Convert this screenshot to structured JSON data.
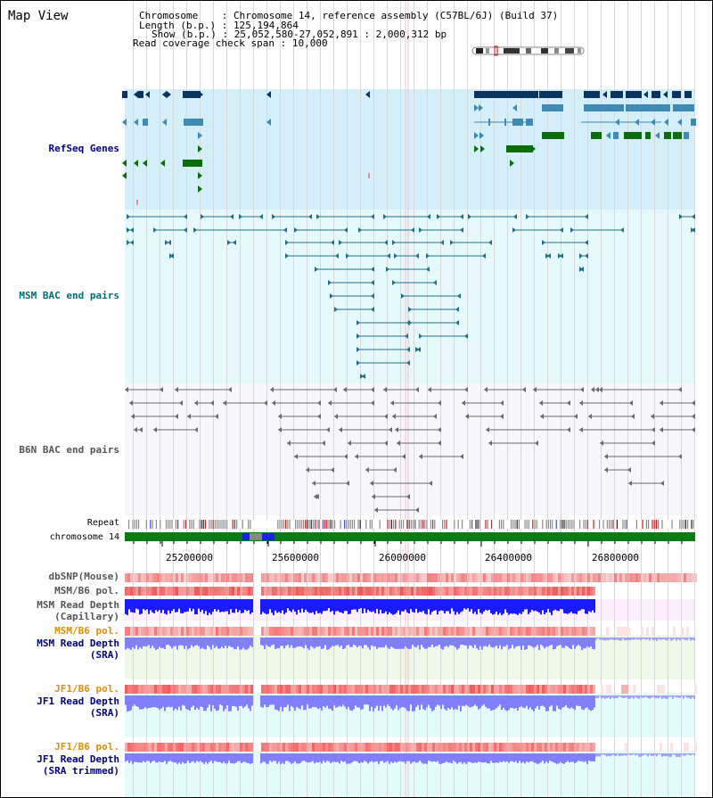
{
  "app_title": "Map View",
  "info": {
    "chromosome_key": "Chromosome",
    "chromosome_val": "Chromosome 14, reference assembly (C57BL/6J) (Build 37)",
    "length_key": "Length (b.p.)",
    "length_val": "125,194,864",
    "show_key": "Show (b.p.)",
    "show_val": "25,052,580-27,052,891 : 2,000,312 bp",
    "coverage_key": "Read coverage check span",
    "coverage_val": "10,000"
  },
  "tracks": {
    "refseq": "RefSeq Genes",
    "msm_bac": "MSM BAC end pairs",
    "b6n_bac": "B6N BAC end pairs",
    "repeat": "Repeat",
    "chromosome": "chromosome 14",
    "dbsnp": "dbSNP(Mouse)",
    "msm_b6_pol_cap": "MSM/B6 pol.",
    "msm_depth_cap_1": "MSM Read Depth",
    "msm_depth_cap_2": "(Capillary)",
    "msm_b6_pol_sra": "MSM/B6 pol.",
    "msm_depth_sra_1": "MSM Read Depth",
    "msm_depth_sra_2": "(SRA)",
    "jf1_b6_pol_sra": "JF1/B6 pol.",
    "jf1_depth_sra_1": "JF1 Read Depth",
    "jf1_depth_sra_2": "(SRA)",
    "jf1_b6_pol_trim": "JF1/B6 pol.",
    "jf1_depth_trim_1": "JF1 Read Depth",
    "jf1_depth_trim_2": "(SRA trimmed)"
  },
  "axis": {
    "ticks": [
      "25200000",
      "25600000",
      "26000000",
      "26400000",
      "26800000"
    ]
  },
  "colors": {
    "refseq_bg": "#d4eefa",
    "msm_bg": "#e5f8fb",
    "b6n_bg": "#f6f6fc",
    "depth_cap_bg": "#fbeefc",
    "depth_msm_sra_bg": "#eef8e6",
    "depth_jf1_bg": "#e4fbfb",
    "gene_dark": "#0b3463",
    "gene_mid": "#3d8ab2",
    "gene_green": "#0a6e0a",
    "msm_line": "#1f6f8b",
    "b6n_line": "#6a6a6a",
    "chrom_green": "#0a7a12",
    "depth_dark_blue": "#1a1aff",
    "depth_light_blue": "#8080ff",
    "snp_red": "#f05050",
    "label_navy": "#000080",
    "label_teal": "#006e7a",
    "label_gray": "#555555",
    "label_orange": "#e09000"
  }
}
